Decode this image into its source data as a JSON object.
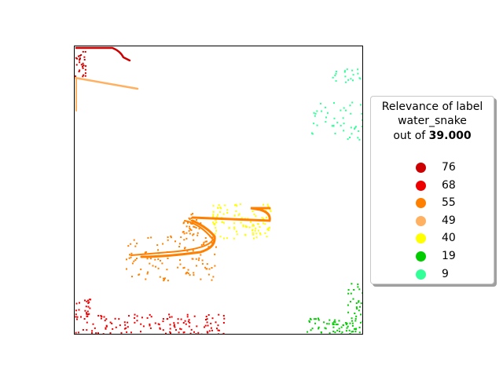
{
  "legend": {
    "title_line1": "Relevance of label",
    "title_line2": "water_snake",
    "title_line3_prefix": "out of ",
    "title_line3_value": "39.000",
    "entries": [
      {
        "label": "76",
        "color": "#cc0000"
      },
      {
        "label": "68",
        "color": "#ee0000"
      },
      {
        "label": "55",
        "color": "#ff8000"
      },
      {
        "label": "49",
        "color": "#ffb060"
      },
      {
        "label": "40",
        "color": "#ffff00"
      },
      {
        "label": "19",
        "color": "#00cc00"
      },
      {
        "label": "9",
        "color": "#33ff99"
      }
    ]
  },
  "chart_data": {
    "type": "heatmap",
    "title": "",
    "xlabel": "",
    "ylabel": "",
    "grid": false,
    "legend_placement": "right",
    "max_value": 39.0,
    "classes": [
      {
        "value": 76,
        "color": "#cc0000",
        "region": "top-left"
      },
      {
        "value": 68,
        "color": "#ee0000",
        "region": "bottom-left"
      },
      {
        "value": 55,
        "color": "#ff8000",
        "region": "center (snake body)"
      },
      {
        "value": 49,
        "color": "#ffb060",
        "region": "top-left diagonal"
      },
      {
        "value": 40,
        "color": "#ffff00",
        "region": "center-right"
      },
      {
        "value": 19,
        "color": "#00cc00",
        "region": "bottom-right"
      },
      {
        "value": 9,
        "color": "#33ff99",
        "region": "top-right"
      }
    ]
  }
}
